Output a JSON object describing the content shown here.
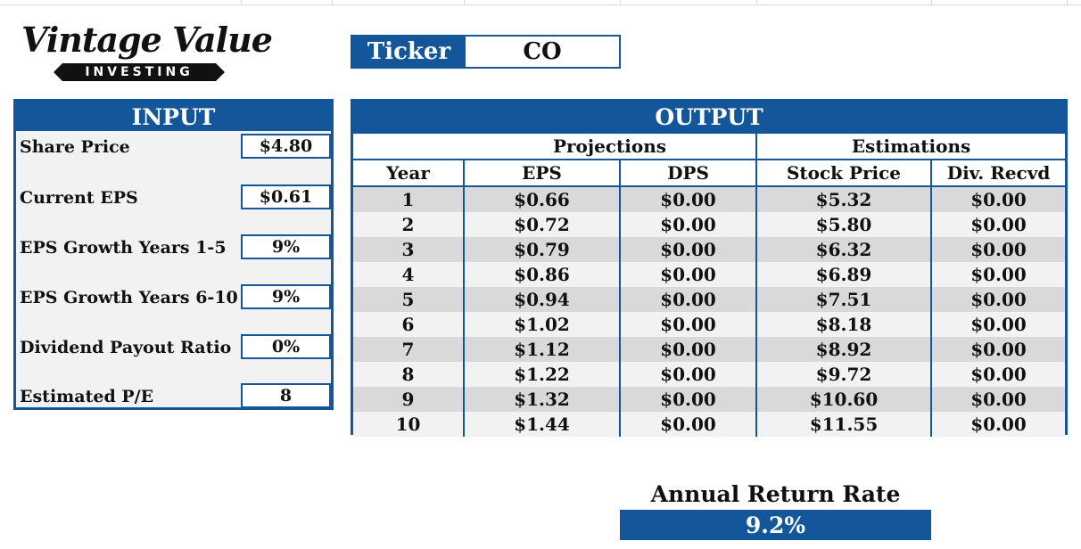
{
  "logo": {
    "script": "Vintage Value",
    "bar": "INVESTING"
  },
  "ticker": {
    "label": "Ticker",
    "value": "CO"
  },
  "input": {
    "title": "INPUT",
    "rows": [
      {
        "label": "Share Price",
        "value": "$4.80"
      },
      {
        "label": "Current EPS",
        "value": "$0.61"
      },
      {
        "label": "EPS Growth Years 1-5",
        "value": "9%"
      },
      {
        "label": "EPS Growth Years 6-10",
        "value": "9%"
      },
      {
        "label": "Dividend Payout Ratio",
        "value": "0%"
      },
      {
        "label": "Estimated P/E",
        "value": "8"
      }
    ]
  },
  "output": {
    "title": "OUTPUT",
    "groups": [
      "Projections",
      "Estimations"
    ],
    "columns": [
      "Year",
      "EPS",
      "DPS",
      "Stock Price",
      "Div. Recvd"
    ],
    "rows": [
      [
        "1",
        "$0.66",
        "$0.00",
        "$5.32",
        "$0.00"
      ],
      [
        "2",
        "$0.72",
        "$0.00",
        "$5.80",
        "$0.00"
      ],
      [
        "3",
        "$0.79",
        "$0.00",
        "$6.32",
        "$0.00"
      ],
      [
        "4",
        "$0.86",
        "$0.00",
        "$6.89",
        "$0.00"
      ],
      [
        "5",
        "$0.94",
        "$0.00",
        "$7.51",
        "$0.00"
      ],
      [
        "6",
        "$1.02",
        "$0.00",
        "$8.18",
        "$0.00"
      ],
      [
        "7",
        "$1.12",
        "$0.00",
        "$8.92",
        "$0.00"
      ],
      [
        "8",
        "$1.22",
        "$0.00",
        "$9.72",
        "$0.00"
      ],
      [
        "9",
        "$1.32",
        "$0.00",
        "$10.60",
        "$0.00"
      ],
      [
        "10",
        "$1.44",
        "$0.00",
        "$11.55",
        "$0.00"
      ]
    ]
  },
  "return_rate": {
    "label": "Annual Return Rate",
    "value": "9.2%"
  },
  "colors": {
    "brand_blue": "#13579a",
    "band_gray": "#d9d9d9",
    "light_gray": "#f2f2f2"
  }
}
